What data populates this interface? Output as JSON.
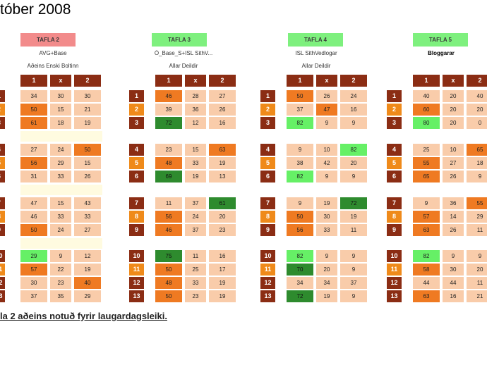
{
  "title": "tóber 2008",
  "footnote": "la 2 aðeins notuð fyrir laugardagsleiki.",
  "colors": {
    "header": "#8b2d14",
    "cell": "#f9ccaa",
    "orange": "#ef7a22",
    "light_green": "#66f066",
    "dark_green": "#2e8b2e",
    "badge_red": "#f28b8b",
    "badge_green": "#7ef07e",
    "row_dark": "#8b2d14",
    "row_orange": "#ef8a1a"
  },
  "headers": [
    "1",
    "x",
    "2"
  ],
  "row_numbers": [
    "1",
    "2",
    "3",
    "4",
    "5",
    "6",
    "7",
    "8",
    "9",
    "10",
    "11",
    "12",
    "13"
  ],
  "panels": [
    {
      "badge": "TAFLA 2",
      "badge_color": "red",
      "line1": "AVG+Base",
      "line2": "Aðeins Enski Boltinn",
      "rows": [
        [
          {
            "v": "34"
          },
          {
            "v": "30"
          },
          {
            "v": "30"
          }
        ],
        [
          {
            "v": "50",
            "c": "orange"
          },
          {
            "v": "15"
          },
          {
            "v": "21"
          }
        ],
        [
          {
            "v": "61",
            "c": "orange"
          },
          {
            "v": "18"
          },
          {
            "v": "19"
          }
        ],
        [
          {
            "v": "27"
          },
          {
            "v": "24"
          },
          {
            "v": "50",
            "c": "orange"
          }
        ],
        [
          {
            "v": "56",
            "c": "orange"
          },
          {
            "v": "29"
          },
          {
            "v": "15"
          }
        ],
        [
          {
            "v": "31"
          },
          {
            "v": "33"
          },
          {
            "v": "26"
          }
        ],
        [
          {
            "v": "47"
          },
          {
            "v": "15"
          },
          {
            "v": "43"
          }
        ],
        [
          {
            "v": "46"
          },
          {
            "v": "33"
          },
          {
            "v": "33"
          }
        ],
        [
          {
            "v": "50",
            "c": "orange"
          },
          {
            "v": "24"
          },
          {
            "v": "27"
          }
        ],
        [
          {
            "v": "29",
            "c": "lgreen"
          },
          {
            "v": "9"
          },
          {
            "v": "12"
          }
        ],
        [
          {
            "v": "57",
            "c": "orange"
          },
          {
            "v": "22"
          },
          {
            "v": "19"
          }
        ],
        [
          {
            "v": "30"
          },
          {
            "v": "23"
          },
          {
            "v": "40",
            "c": "orange"
          }
        ],
        [
          {
            "v": "37"
          },
          {
            "v": "35"
          },
          {
            "v": "29"
          }
        ]
      ]
    },
    {
      "badge": "TAFLA 3",
      "badge_color": "green",
      "line1": "Ó_Base_S+ISL SithV...",
      "line2": "Allar Deildir",
      "rows": [
        [
          {
            "v": "46",
            "c": "orange"
          },
          {
            "v": "28"
          },
          {
            "v": "27"
          }
        ],
        [
          {
            "v": "39"
          },
          {
            "v": "36"
          },
          {
            "v": "26"
          }
        ],
        [
          {
            "v": "72",
            "c": "dgreen"
          },
          {
            "v": "12"
          },
          {
            "v": "16"
          }
        ],
        [
          {
            "v": "23"
          },
          {
            "v": "15"
          },
          {
            "v": "63",
            "c": "orange"
          }
        ],
        [
          {
            "v": "48",
            "c": "orange"
          },
          {
            "v": "33"
          },
          {
            "v": "19"
          }
        ],
        [
          {
            "v": "69",
            "c": "dgreen"
          },
          {
            "v": "19"
          },
          {
            "v": "13"
          }
        ],
        [
          {
            "v": "11"
          },
          {
            "v": "37"
          },
          {
            "v": "61",
            "c": "dgreen"
          }
        ],
        [
          {
            "v": "56",
            "c": "orange"
          },
          {
            "v": "24"
          },
          {
            "v": "20"
          }
        ],
        [
          {
            "v": "46",
            "c": "orange"
          },
          {
            "v": "37"
          },
          {
            "v": "23"
          }
        ],
        [
          {
            "v": "75",
            "c": "dgreen"
          },
          {
            "v": "11"
          },
          {
            "v": "16"
          }
        ],
        [
          {
            "v": "50",
            "c": "orange"
          },
          {
            "v": "25"
          },
          {
            "v": "17"
          }
        ],
        [
          {
            "v": "48",
            "c": "orange"
          },
          {
            "v": "33"
          },
          {
            "v": "19"
          }
        ],
        [
          {
            "v": "50",
            "c": "orange"
          },
          {
            "v": "23"
          },
          {
            "v": "19"
          }
        ]
      ]
    },
    {
      "badge": "TAFLA 4",
      "badge_color": "green",
      "line1": "ISL SithVedlogar",
      "line2": "Allar Deildir",
      "rows": [
        [
          {
            "v": "50",
            "c": "orange"
          },
          {
            "v": "26"
          },
          {
            "v": "24"
          }
        ],
        [
          {
            "v": "37"
          },
          {
            "v": "47",
            "c": "orange"
          },
          {
            "v": "16"
          }
        ],
        [
          {
            "v": "82",
            "c": "lgreen"
          },
          {
            "v": "9"
          },
          {
            "v": "9"
          }
        ],
        [
          {
            "v": "9"
          },
          {
            "v": "10"
          },
          {
            "v": "82",
            "c": "lgreen"
          }
        ],
        [
          {
            "v": "38"
          },
          {
            "v": "42"
          },
          {
            "v": "20"
          }
        ],
        [
          {
            "v": "82",
            "c": "lgreen"
          },
          {
            "v": "9"
          },
          {
            "v": "9"
          }
        ],
        [
          {
            "v": "9"
          },
          {
            "v": "19"
          },
          {
            "v": "72",
            "c": "dgreen"
          }
        ],
        [
          {
            "v": "50",
            "c": "orange"
          },
          {
            "v": "30"
          },
          {
            "v": "19"
          }
        ],
        [
          {
            "v": "56",
            "c": "orange"
          },
          {
            "v": "33"
          },
          {
            "v": "11"
          }
        ],
        [
          {
            "v": "82",
            "c": "lgreen"
          },
          {
            "v": "9"
          },
          {
            "v": "9"
          }
        ],
        [
          {
            "v": "70",
            "c": "dgreen"
          },
          {
            "v": "20"
          },
          {
            "v": "9"
          }
        ],
        [
          {
            "v": "34"
          },
          {
            "v": "34"
          },
          {
            "v": "37"
          }
        ],
        [
          {
            "v": "72",
            "c": "dgreen"
          },
          {
            "v": "19"
          },
          {
            "v": "9"
          }
        ]
      ]
    },
    {
      "badge": "TAFLA 5",
      "badge_color": "green",
      "line1": "Bloggarar",
      "line2": "",
      "rows": [
        [
          {
            "v": "40"
          },
          {
            "v": "20"
          },
          {
            "v": "40"
          }
        ],
        [
          {
            "v": "60",
            "c": "orange"
          },
          {
            "v": "20"
          },
          {
            "v": "20"
          }
        ],
        [
          {
            "v": "80",
            "c": "lgreen"
          },
          {
            "v": "20"
          },
          {
            "v": "0"
          }
        ],
        [
          {
            "v": "25"
          },
          {
            "v": "10"
          },
          {
            "v": "65",
            "c": "orange"
          }
        ],
        [
          {
            "v": "55",
            "c": "orange"
          },
          {
            "v": "27"
          },
          {
            "v": "18"
          }
        ],
        [
          {
            "v": "65",
            "c": "orange"
          },
          {
            "v": "26"
          },
          {
            "v": "9"
          }
        ],
        [
          {
            "v": "9"
          },
          {
            "v": "36"
          },
          {
            "v": "55",
            "c": "orange"
          }
        ],
        [
          {
            "v": "57",
            "c": "orange"
          },
          {
            "v": "14"
          },
          {
            "v": "29"
          }
        ],
        [
          {
            "v": "63",
            "c": "orange"
          },
          {
            "v": "26"
          },
          {
            "v": "11"
          }
        ],
        [
          {
            "v": "82",
            "c": "lgreen"
          },
          {
            "v": "9"
          },
          {
            "v": "9"
          }
        ],
        [
          {
            "v": "58",
            "c": "orange"
          },
          {
            "v": "30"
          },
          {
            "v": "20"
          }
        ],
        [
          {
            "v": "44"
          },
          {
            "v": "44"
          },
          {
            "v": "11"
          }
        ],
        [
          {
            "v": "63",
            "c": "orange"
          },
          {
            "v": "16"
          },
          {
            "v": "21"
          }
        ]
      ]
    }
  ]
}
